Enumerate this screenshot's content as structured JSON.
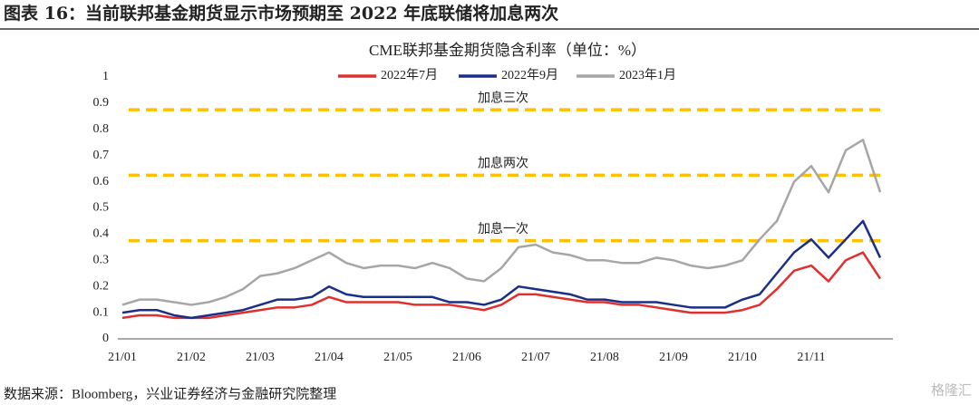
{
  "header": {
    "title": "图表 16：当前联邦基金期货显示市场预期至 2022 年底联储将加息两次"
  },
  "chart_data": {
    "type": "line",
    "title": "CME联邦基金期货隐含利率（单位：%）",
    "categories": [
      "21/01",
      null,
      null,
      null,
      "21/02",
      null,
      null,
      null,
      "21/03",
      null,
      null,
      null,
      "21/04",
      null,
      null,
      null,
      "21/05",
      null,
      null,
      null,
      "21/06",
      null,
      null,
      null,
      "21/07",
      null,
      null,
      null,
      "21/08",
      null,
      null,
      null,
      "21/09",
      null,
      null,
      null,
      "21/10",
      null,
      null,
      null,
      "21/11",
      null,
      null,
      null,
      null
    ],
    "series": [
      {
        "name": "2022年7月",
        "color": "#e0302e",
        "values": [
          0.08,
          0.09,
          0.09,
          0.08,
          0.08,
          0.08,
          0.09,
          0.1,
          0.11,
          0.12,
          0.12,
          0.13,
          0.16,
          0.14,
          0.14,
          0.14,
          0.14,
          0.13,
          0.13,
          0.13,
          0.12,
          0.11,
          0.13,
          0.17,
          0.17,
          0.16,
          0.15,
          0.14,
          0.14,
          0.13,
          0.13,
          0.12,
          0.11,
          0.1,
          0.1,
          0.1,
          0.11,
          0.13,
          0.19,
          0.26,
          0.28,
          0.22,
          0.3,
          0.33,
          0.23
        ]
      },
      {
        "name": "2022年9月",
        "color": "#1a2f86",
        "values": [
          0.1,
          0.11,
          0.11,
          0.09,
          0.08,
          0.09,
          0.1,
          0.11,
          0.13,
          0.15,
          0.15,
          0.16,
          0.2,
          0.17,
          0.16,
          0.16,
          0.16,
          0.16,
          0.16,
          0.14,
          0.14,
          0.13,
          0.15,
          0.2,
          0.19,
          0.18,
          0.17,
          0.15,
          0.15,
          0.14,
          0.14,
          0.14,
          0.13,
          0.12,
          0.12,
          0.12,
          0.15,
          0.17,
          0.25,
          0.33,
          0.38,
          0.31,
          0.38,
          0.45,
          0.31
        ]
      },
      {
        "name": "2023年1月",
        "color": "#a6a6a6",
        "values": [
          0.13,
          0.15,
          0.15,
          0.14,
          0.13,
          0.14,
          0.16,
          0.19,
          0.24,
          0.25,
          0.27,
          0.3,
          0.33,
          0.29,
          0.27,
          0.28,
          0.28,
          0.27,
          0.29,
          0.27,
          0.23,
          0.22,
          0.27,
          0.35,
          0.36,
          0.33,
          0.32,
          0.3,
          0.3,
          0.29,
          0.29,
          0.31,
          0.3,
          0.28,
          0.27,
          0.28,
          0.3,
          0.38,
          0.45,
          0.6,
          0.66,
          0.56,
          0.72,
          0.76,
          0.56
        ]
      }
    ],
    "reference_lines": [
      {
        "value": 0.875,
        "label": "加息三次"
      },
      {
        "value": 0.625,
        "label": "加息两次"
      },
      {
        "value": 0.375,
        "label": "加息一次"
      }
    ],
    "reference_color": "#ffc000",
    "ylim": [
      0,
      1
    ],
    "yticks": [
      0,
      0.1,
      0.2,
      0.3,
      0.4,
      0.5,
      0.6,
      0.7,
      0.8,
      0.9,
      1
    ],
    "grid": false
  },
  "footer": {
    "source": "数据来源：Bloomberg，兴业证券经济与金融研究院整理",
    "watermark": "格隆汇"
  }
}
